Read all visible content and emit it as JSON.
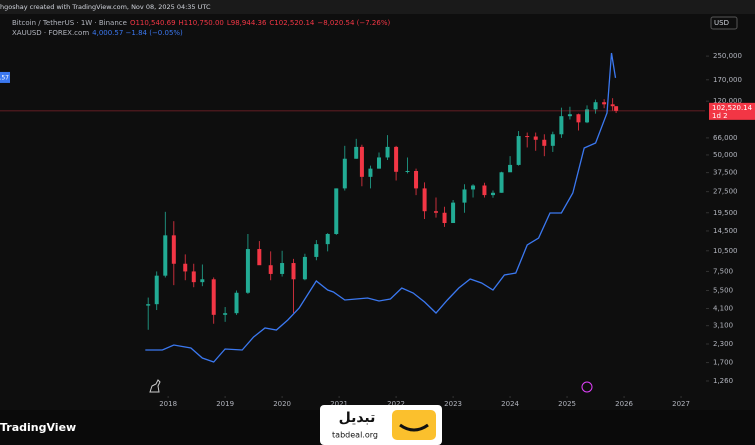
{
  "chart_data": {
    "type": "candlestick",
    "header": "hgoshay created with TradingView.com, Nov 08, 2025 04:35 UTC",
    "currency": "USD",
    "log_scale": true,
    "grid": false,
    "xlim": [
      2015.05,
      2027.42
    ],
    "xticks": [
      2018,
      2019,
      2020,
      2021,
      2022,
      2023,
      2024,
      2025,
      2026,
      2027
    ],
    "ylim": [
      852,
      465000
    ],
    "yticks": [
      {
        "value": 250000,
        "label": "250,000"
      },
      {
        "value": 170000,
        "label": "170,000"
      },
      {
        "value": 120000,
        "label": "120,000"
      },
      {
        "value": 66000,
        "label": "66,000"
      },
      {
        "value": 50000,
        "label": "50,000"
      },
      {
        "value": 37500,
        "label": "37,500"
      },
      {
        "value": 27500,
        "label": "27,500"
      },
      {
        "value": 19500,
        "label": "19,500"
      },
      {
        "value": 14500,
        "label": "14,500"
      },
      {
        "value": 10500,
        "label": "10,500"
      },
      {
        "value": 7500,
        "label": "7,500"
      },
      {
        "value": 5500,
        "label": "5,500"
      },
      {
        "value": 4100,
        "label": "4,100"
      },
      {
        "value": 3100,
        "label": "3,100"
      },
      {
        "value": 2300,
        "label": "2,300"
      },
      {
        "value": 1700,
        "label": "1,700"
      },
      {
        "value": 1260,
        "label": "1,260"
      }
    ],
    "y2lim": [
      730,
      4600
    ],
    "candles": {
      "name": "Bitcoin / TetherUS · 1W · Binance",
      "legend_values": [
        "O110,540.69",
        "H110,750.00",
        "L98,944.36",
        "C102,520.14",
        "−8,020.54 (−7.26%)"
      ],
      "up_color": "#22ab94",
      "down_color": "#f23645",
      "price_tag": {
        "value": 102520.14,
        "label": "102,520.14"
      },
      "countdown": "1d 2",
      "x": [
        2017.65,
        2017.8,
        2017.95,
        2018.1,
        2018.3,
        2018.45,
        2018.6,
        2018.8,
        2019.0,
        2019.2,
        2019.4,
        2019.6,
        2019.8,
        2020.0,
        2020.2,
        2020.4,
        2020.6,
        2020.8,
        2020.95,
        2021.1,
        2021.3,
        2021.4,
        2021.55,
        2021.7,
        2021.85,
        2022.0,
        2022.2,
        2022.35,
        2022.5,
        2022.7,
        2022.85,
        2023.0,
        2023.2,
        2023.35,
        2023.55,
        2023.7,
        2023.85,
        2024.0,
        2024.15,
        2024.3,
        2024.45,
        2024.6,
        2024.75,
        2024.9,
        2025.05,
        2025.2,
        2025.35,
        2025.5,
        2025.65,
        2025.8,
        2025.86
      ],
      "open": [
        4300,
        4400,
        7000,
        13500,
        8500,
        7500,
        6300,
        6600,
        3700,
        3800,
        5300,
        10800,
        8300,
        7200,
        8600,
        6600,
        9500,
        11700,
        13800,
        29000,
        47000,
        57000,
        35000,
        40000,
        48000,
        57000,
        38000,
        38500,
        29000,
        20000,
        19500,
        16500,
        23000,
        28500,
        30400,
        26000,
        27000,
        37700,
        42500,
        68000,
        67500,
        64000,
        58000,
        70000,
        94000,
        97000,
        85000,
        105000,
        118000,
        114000,
        110540.69
      ],
      "high": [
        4900,
        7500,
        19800,
        17000,
        9900,
        8500,
        8400,
        6800,
        4200,
        5500,
        13800,
        12300,
        10400,
        10500,
        9200,
        10000,
        12500,
        14000,
        29000,
        58000,
        65000,
        59000,
        42000,
        52000,
        69000,
        58000,
        48000,
        40000,
        32000,
        25000,
        21500,
        24000,
        31000,
        31000,
        31800,
        28000,
        38000,
        49000,
        73800,
        72000,
        72000,
        70000,
        73000,
        108000,
        109500,
        98000,
        112000,
        123000,
        124000,
        126000,
        110750
      ],
      "low": [
        2900,
        4000,
        6800,
        6000,
        6500,
        5800,
        5900,
        3200,
        3300,
        3700,
        5200,
        8400,
        6500,
        6900,
        3800,
        6500,
        9000,
        10400,
        13600,
        28000,
        47000,
        30000,
        29000,
        40000,
        46000,
        33000,
        37000,
        26000,
        17600,
        18000,
        15500,
        16500,
        19500,
        25000,
        25000,
        24900,
        27000,
        38500,
        42000,
        56500,
        53500,
        49000,
        52500,
        66000,
        89000,
        74500,
        84000,
        98000,
        107000,
        103000,
        98944.36
      ],
      "close": [
        4400,
        7000,
        13500,
        8500,
        7500,
        6300,
        6600,
        3700,
        3800,
        5300,
        10800,
        8300,
        7200,
        8600,
        6600,
        9500,
        11700,
        13800,
        29000,
        47000,
        57000,
        35000,
        40000,
        48000,
        57000,
        38000,
        38500,
        29000,
        20000,
        19500,
        16500,
        23000,
        28500,
        30400,
        26000,
        27000,
        37700,
        42500,
        68000,
        67500,
        64000,
        58000,
        70000,
        94000,
        97000,
        85000,
        105000,
        118000,
        114000,
        110540.69,
        102520.14
      ]
    },
    "series": [
      {
        "name": "XAUUSD · FOREX.com",
        "legend_value": "4,000.57 −1.84 (−0.05%)",
        "color": "#3b78f0",
        "axis": "y2",
        "type": "line",
        "last_label": "4,000.57",
        "x": [
          2017.6,
          2017.9,
          2018.1,
          2018.4,
          2018.6,
          2018.8,
          2019.0,
          2019.3,
          2019.5,
          2019.7,
          2019.9,
          2020.1,
          2020.3,
          2020.6,
          2020.8,
          2020.9,
          2021.1,
          2021.3,
          2021.5,
          2021.7,
          2021.9,
          2022.1,
          2022.3,
          2022.5,
          2022.7,
          2022.9,
          2023.1,
          2023.3,
          2023.5,
          2023.7,
          2023.9,
          2024.1,
          2024.3,
          2024.5,
          2024.7,
          2024.9,
          2025.1,
          2025.3,
          2025.5,
          2025.7,
          2025.78,
          2025.85
        ],
        "values": [
          1280,
          1280,
          1330,
          1300,
          1200,
          1160,
          1290,
          1280,
          1410,
          1500,
          1480,
          1580,
          1700,
          1970,
          1880,
          1860,
          1780,
          1790,
          1800,
          1770,
          1790,
          1900,
          1850,
          1760,
          1650,
          1780,
          1900,
          1990,
          1950,
          1880,
          2030,
          2050,
          2330,
          2400,
          2650,
          2650,
          2850,
          3300,
          3350,
          3650,
          4250,
          4000.57
        ]
      }
    ],
    "branding": "TradingView",
    "watermark": {
      "name": "تبدیل",
      "site": "tabdeal.org"
    }
  }
}
